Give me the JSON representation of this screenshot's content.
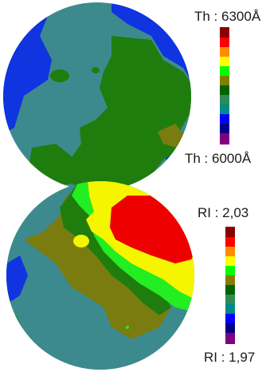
{
  "chart_data": [
    {
      "type": "heatmap",
      "variable": "Th",
      "scale_max_label": "Th : 6300Å",
      "scale_min_label": "Th : 6000Å",
      "colorbar": [
        "#8b0000",
        "#ff0000",
        "#ff8c00",
        "#ffff00",
        "#00ff00",
        "#808000",
        "#006400",
        "#2e8b57",
        "#008b8b",
        "#0000ff",
        "#00008b",
        "#800080"
      ]
    },
    {
      "type": "heatmap",
      "variable": "RI",
      "scale_max_label": "RI : 2,03",
      "scale_min_label": "RI : 1,97",
      "colorbar": [
        "#8b0000",
        "#ff0000",
        "#ff8c00",
        "#ffff00",
        "#00ff00",
        "#808000",
        "#006400",
        "#2e8b57",
        "#008b8b",
        "#0000ff",
        "#00008b",
        "#800080"
      ]
    }
  ],
  "palette": {
    "navy": "#000080",
    "blue": "#0f34e0",
    "teal": "#3d8a8e",
    "green": "#1f7d0d",
    "olive": "#7a7c10",
    "lime": "#22ee22",
    "yellow": "#f5f500",
    "red": "#ee0000"
  }
}
